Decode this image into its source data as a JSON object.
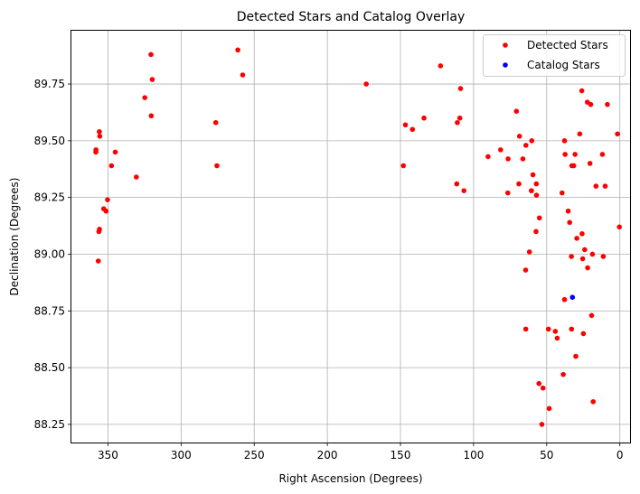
{
  "chart_data": {
    "type": "scatter",
    "title": "Detected Stars and Catalog Overlay",
    "xlabel": "Right Ascension (Degrees)",
    "ylabel": "Declination (Degrees)",
    "xlim": [
      375,
      -7
    ],
    "ylim": [
      88.17,
      89.985
    ],
    "x_ticks": [
      350,
      300,
      250,
      200,
      150,
      100,
      50,
      0
    ],
    "x_tick_labels": [
      "350",
      "300",
      "250",
      "200",
      "150",
      "100",
      "50",
      "0"
    ],
    "y_ticks": [
      88.25,
      88.5,
      88.75,
      89.0,
      89.25,
      89.5,
      89.75
    ],
    "y_tick_labels": [
      "88.25",
      "88.50",
      "88.75",
      "89.00",
      "89.25",
      "89.50",
      "89.75"
    ],
    "grid": true,
    "legend_position": "top-right",
    "series": [
      {
        "name": "Detected Stars",
        "color": "#ff0000",
        "x": [
          320.6,
          319.7,
          261.2,
          257.9,
          324.8,
          320.4,
          276.3,
          275.5,
          355.9,
          355.6,
          358.2,
          358.3,
          345.0,
          347.6,
          330.6,
          350.3,
          352.9,
          351.3,
          356.2,
          355.8,
          356.6,
          173.4,
          122.6,
          108.9,
          133.9,
          146.6,
          141.8,
          111.1,
          109.4,
          148.0,
          111.5,
          106.6,
          70.7,
          68.6,
          60.2,
          59.4,
          57.1,
          57.0,
          55.0,
          64.2,
          66.3,
          81.5,
          76.4,
          90.1,
          69.0,
          60.4,
          60.5,
          76.6,
          39.5,
          37.8,
          37.4,
          26.0,
          22.2,
          19.9,
          8.5,
          27.4,
          32.8,
          30.6,
          31.5,
          11.9,
          20.4,
          10.0,
          16.3,
          1.6,
          0.3,
          35.3,
          34.3,
          25.8,
          29.4,
          24.0,
          22.0,
          33.1,
          18.7,
          11.3,
          25.4,
          64.4,
          61.8,
          57.3,
          37.8,
          19.3,
          64.3,
          33.0,
          48.8,
          44.1,
          42.8,
          24.9,
          30.1,
          38.7,
          55.3,
          52.5,
          48.3,
          53.3,
          18.2
        ],
        "y": [
          89.88,
          89.77,
          89.9,
          89.79,
          89.69,
          89.61,
          89.58,
          89.39,
          89.54,
          89.52,
          89.46,
          89.45,
          89.45,
          89.39,
          89.34,
          89.24,
          89.2,
          89.19,
          89.1,
          89.11,
          88.97,
          89.75,
          89.83,
          89.73,
          89.6,
          89.57,
          89.55,
          89.58,
          89.6,
          89.39,
          89.31,
          89.28,
          89.63,
          89.52,
          89.5,
          89.35,
          89.31,
          89.26,
          89.16,
          89.48,
          89.42,
          89.46,
          89.42,
          89.43,
          89.31,
          89.28,
          89.28,
          89.27,
          89.27,
          89.5,
          89.44,
          89.72,
          89.67,
          89.66,
          89.66,
          89.53,
          89.39,
          89.44,
          89.39,
          89.44,
          89.4,
          89.3,
          89.3,
          89.53,
          89.12,
          89.19,
          89.14,
          89.09,
          89.07,
          89.02,
          88.94,
          88.99,
          89.0,
          88.99,
          88.98,
          88.93,
          89.01,
          89.1,
          88.8,
          88.73,
          88.67,
          88.67,
          88.67,
          88.66,
          88.63,
          88.65,
          88.55,
          88.47,
          88.43,
          88.41,
          88.32,
          88.25,
          88.35
        ]
      },
      {
        "name": "Catalog Stars",
        "color": "#0000ff",
        "x": [
          32.4
        ],
        "y": [
          88.81
        ]
      }
    ]
  }
}
